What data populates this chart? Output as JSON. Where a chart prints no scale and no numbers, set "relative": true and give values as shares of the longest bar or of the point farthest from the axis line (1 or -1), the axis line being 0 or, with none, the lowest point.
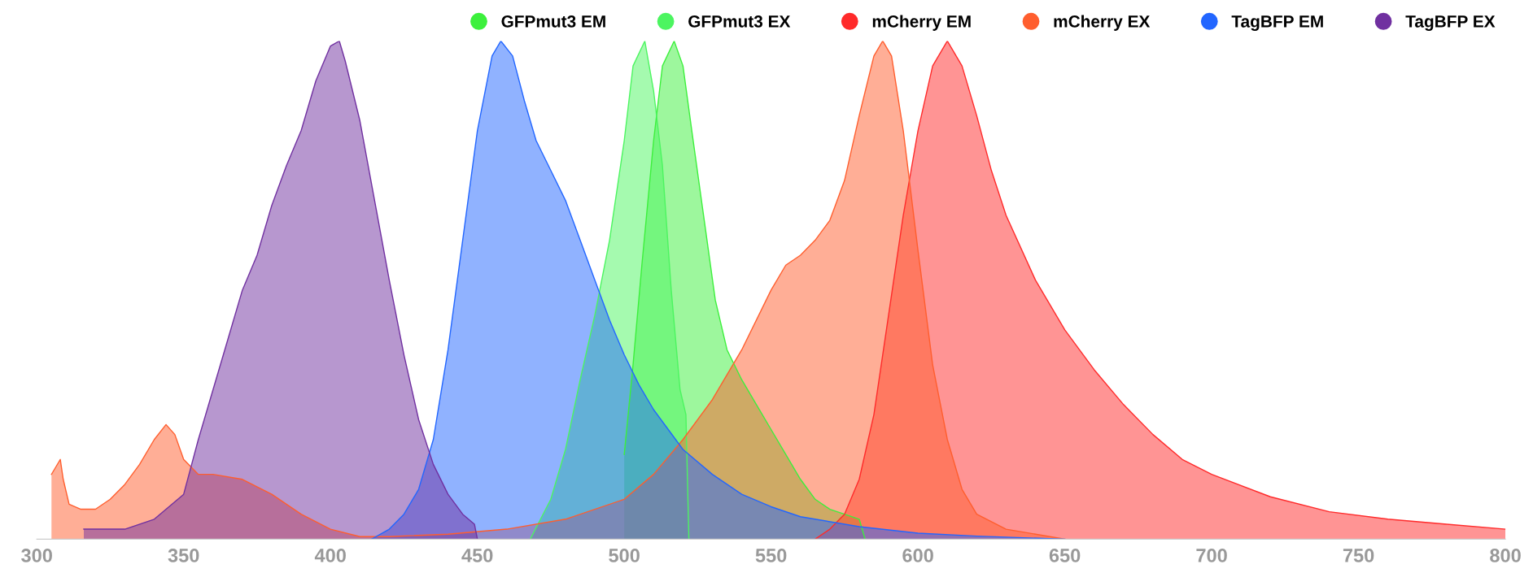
{
  "chart_data": {
    "type": "area",
    "relative": true,
    "xlim": [
      300,
      800
    ],
    "xticks": [
      300,
      350,
      400,
      450,
      500,
      550,
      600,
      650,
      700,
      750,
      800
    ],
    "grid": false,
    "legend": "top right",
    "series": [
      {
        "name": "GFPmut3 EM",
        "color": "#3cf03c",
        "x": [
          500,
          503,
          506,
          510,
          513,
          517,
          520,
          523,
          527,
          531,
          535,
          540,
          545,
          550,
          555,
          560,
          565,
          570,
          575,
          580,
          582
        ],
        "values": [
          0.17,
          0.35,
          0.55,
          0.8,
          0.95,
          1.0,
          0.95,
          0.82,
          0.65,
          0.48,
          0.38,
          0.32,
          0.27,
          0.22,
          0.17,
          0.12,
          0.08,
          0.06,
          0.05,
          0.04,
          0.0
        ]
      },
      {
        "name": "GFPmut3 EX",
        "color": "#4cf560",
        "x": [
          468,
          475,
          480,
          485,
          490,
          495,
          500,
          503,
          507,
          510,
          513,
          516,
          519,
          521,
          522
        ],
        "values": [
          0.0,
          0.08,
          0.18,
          0.32,
          0.45,
          0.6,
          0.8,
          0.95,
          1.0,
          0.9,
          0.75,
          0.5,
          0.3,
          0.25,
          0.0
        ]
      },
      {
        "name": "mCherry EM",
        "color": "#ff2a2a",
        "x": [
          565,
          570,
          575,
          580,
          585,
          590,
          595,
          600,
          605,
          610,
          615,
          620,
          625,
          630,
          640,
          650,
          660,
          670,
          680,
          690,
          700,
          720,
          740,
          760,
          780,
          800
        ],
        "values": [
          0.0,
          0.02,
          0.05,
          0.12,
          0.25,
          0.45,
          0.65,
          0.82,
          0.95,
          1.0,
          0.95,
          0.85,
          0.74,
          0.65,
          0.52,
          0.42,
          0.34,
          0.27,
          0.21,
          0.16,
          0.13,
          0.085,
          0.055,
          0.04,
          0.03,
          0.02
        ]
      },
      {
        "name": "mCherry EX",
        "color": "#ff5e2e",
        "x": [
          305,
          306,
          308,
          309,
          311,
          315,
          320,
          325,
          330,
          335,
          340,
          344,
          347,
          350,
          355,
          360,
          370,
          380,
          390,
          400,
          410,
          420,
          440,
          460,
          480,
          500,
          510,
          520,
          530,
          540,
          550,
          555,
          560,
          565,
          570,
          575,
          580,
          585,
          588,
          591,
          595,
          600,
          605,
          610,
          615,
          620,
          630,
          640,
          650
        ],
        "values": [
          0.13,
          0.14,
          0.16,
          0.12,
          0.07,
          0.06,
          0.06,
          0.08,
          0.11,
          0.15,
          0.2,
          0.23,
          0.21,
          0.16,
          0.13,
          0.13,
          0.12,
          0.09,
          0.05,
          0.02,
          0.005,
          0.005,
          0.01,
          0.02,
          0.04,
          0.08,
          0.13,
          0.2,
          0.28,
          0.38,
          0.5,
          0.55,
          0.57,
          0.6,
          0.64,
          0.72,
          0.85,
          0.97,
          1.0,
          0.97,
          0.82,
          0.58,
          0.35,
          0.2,
          0.1,
          0.05,
          0.02,
          0.01,
          0.0
        ]
      },
      {
        "name": "TagBFP EM",
        "color": "#2266ff",
        "x": [
          414,
          420,
          425,
          430,
          435,
          440,
          445,
          450,
          455,
          458,
          462,
          466,
          470,
          475,
          480,
          485,
          490,
          495,
          500,
          505,
          510,
          515,
          520,
          530,
          540,
          550,
          560,
          580,
          600,
          620,
          650
        ],
        "values": [
          0.0,
          0.02,
          0.05,
          0.1,
          0.2,
          0.38,
          0.6,
          0.82,
          0.97,
          1.0,
          0.97,
          0.88,
          0.8,
          0.74,
          0.68,
          0.6,
          0.52,
          0.44,
          0.37,
          0.31,
          0.26,
          0.22,
          0.18,
          0.13,
          0.09,
          0.065,
          0.045,
          0.025,
          0.012,
          0.006,
          0.0
        ]
      },
      {
        "name": "TagBFP EX",
        "color": "#7030a0",
        "x": [
          316,
          330,
          340,
          350,
          355,
          360,
          365,
          370,
          375,
          380,
          385,
          390,
          395,
          400,
          403,
          405,
          410,
          415,
          420,
          425,
          430,
          435,
          440,
          445,
          449,
          450
        ],
        "values": [
          0.02,
          0.02,
          0.04,
          0.09,
          0.2,
          0.3,
          0.4,
          0.5,
          0.57,
          0.67,
          0.75,
          0.82,
          0.92,
          0.99,
          1.0,
          0.96,
          0.84,
          0.68,
          0.52,
          0.37,
          0.24,
          0.15,
          0.09,
          0.05,
          0.03,
          0.0
        ]
      }
    ]
  }
}
